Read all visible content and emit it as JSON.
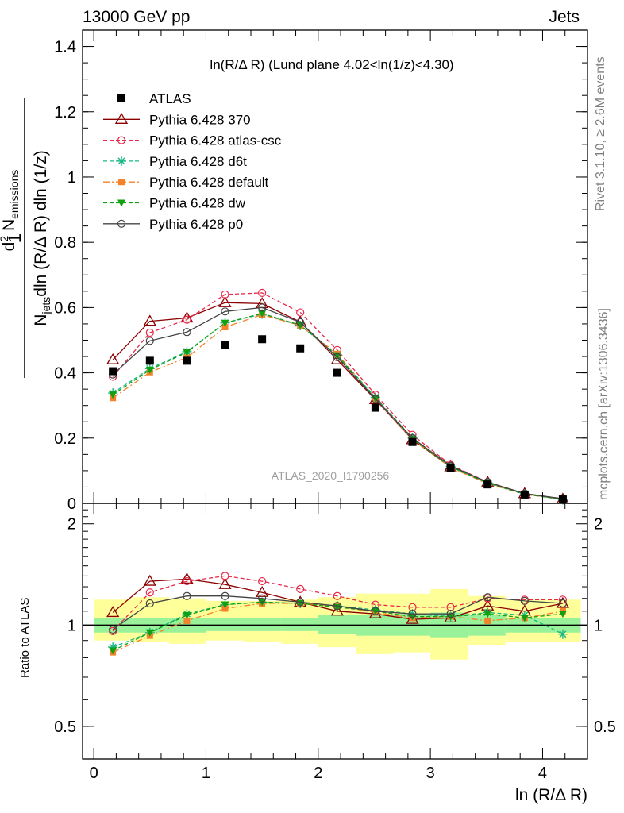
{
  "header": {
    "left": "13000 GeV pp",
    "right": "Jets"
  },
  "side_labels": {
    "rivet": "Rivet 3.1.10, ≥ 2.6M events",
    "mcplots": "mcplots.cern.ch [arXiv:1306.3436]"
  },
  "watermark": "ATLAS_2020_I1790256",
  "chart_data": [
    {
      "type": "scatter",
      "title": "ln(R/Δ R) (Lund plane 4.02<ln(1/z)<4.30)",
      "ylabel_parts": {
        "one": "1",
        "njets": "N",
        "njets_sub": "jets",
        "d2": "d",
        "d2_sup": "2",
        "n": " N",
        "n_sub": "emissions",
        "denominator": "dln (R/Δ R) dln (1/z)"
      },
      "xlim": [
        -0.1,
        4.4
      ],
      "ylim": [
        0,
        1.45
      ],
      "yticks": [
        0,
        0.2,
        0.4,
        0.6,
        0.8,
        1,
        1.2,
        1.4
      ],
      "ytick_labels": [
        "0",
        "0.2",
        "0.4",
        "0.6",
        "0.8",
        "1",
        "1.2",
        "1.4"
      ],
      "x": [
        0.17,
        0.5,
        0.83,
        1.17,
        1.5,
        1.84,
        2.17,
        2.51,
        2.84,
        3.18,
        3.51,
        3.84,
        4.18
      ],
      "data": {
        "name": "ATLAS",
        "values": [
          0.405,
          0.437,
          0.437,
          0.485,
          0.503,
          0.475,
          0.4,
          0.293,
          0.188,
          0.108,
          0.058,
          0.027,
          0.012
        ]
      },
      "series": [
        {
          "name": "Pythia 6.428 370",
          "color": "#8b0000",
          "dash": "",
          "marker": "triangle-open",
          "values": [
            0.44,
            0.558,
            0.568,
            0.615,
            0.612,
            0.556,
            0.44,
            0.318,
            0.195,
            0.112,
            0.065,
            0.03,
            0.013
          ]
        },
        {
          "name": "Pythia 6.428 atlas-csc",
          "color": "#e8284a",
          "dash": "5,3",
          "marker": "circle-open",
          "values": [
            0.388,
            0.523,
            0.563,
            0.64,
            0.645,
            0.585,
            0.47,
            0.333,
            0.21,
            0.118,
            0.065,
            0.03,
            0.014
          ]
        },
        {
          "name": "Pythia 6.428 d6t",
          "color": "#19b886",
          "dash": "5,3",
          "marker": "star",
          "values": [
            0.338,
            0.413,
            0.465,
            0.553,
            0.58,
            0.545,
            0.455,
            0.325,
            0.2,
            0.113,
            0.063,
            0.029,
            0.011
          ]
        },
        {
          "name": "Pythia 6.428 default",
          "color": "#f5822a",
          "dash": "8,3,2,3",
          "marker": "square-filled",
          "values": [
            0.323,
            0.402,
            0.447,
            0.54,
            0.578,
            0.545,
            0.458,
            0.32,
            0.195,
            0.11,
            0.06,
            0.028,
            0.013
          ]
        },
        {
          "name": "Pythia 6.428 dw",
          "color": "#11a011",
          "dash": "5,3",
          "marker": "triangle-down-filled",
          "values": [
            0.333,
            0.409,
            0.463,
            0.553,
            0.582,
            0.546,
            0.453,
            0.322,
            0.197,
            0.112,
            0.062,
            0.028,
            0.013
          ]
        },
        {
          "name": "Pythia 6.428 p0",
          "color": "#444444",
          "dash": "",
          "marker": "circle-open",
          "values": [
            0.395,
            0.498,
            0.525,
            0.588,
            0.6,
            0.555,
            0.448,
            0.32,
            0.2,
            0.115,
            0.065,
            0.03,
            0.014
          ]
        }
      ]
    },
    {
      "type": "line",
      "ylabel": "Ratio to ATLAS",
      "xlabel": "ln (R/Δ R)",
      "xlim": [
        -0.1,
        4.4
      ],
      "ylim": [
        0.4,
        2.3
      ],
      "log_y": true,
      "xticks": [
        0,
        1,
        2,
        3,
        4
      ],
      "xtick_labels": [
        "0",
        "1",
        "2",
        "3",
        "4"
      ],
      "yticks": [
        0.5,
        1,
        2
      ],
      "ytick_labels": [
        "0.5",
        "1",
        "2"
      ],
      "reference": 1,
      "x": [
        0.17,
        0.5,
        0.83,
        1.17,
        1.5,
        1.84,
        2.17,
        2.51,
        2.84,
        3.18,
        3.51,
        3.84,
        4.18
      ],
      "bin_edges": [
        0.0,
        0.34,
        0.67,
        1.0,
        1.34,
        1.67,
        2.0,
        2.34,
        2.67,
        3.0,
        3.34,
        3.67,
        4.0,
        4.34
      ],
      "band_inner": [
        [
          0.95,
          1.05
        ],
        [
          0.95,
          1.05
        ],
        [
          0.95,
          1.05
        ],
        [
          0.96,
          1.05
        ],
        [
          0.96,
          1.05
        ],
        [
          0.96,
          1.05
        ],
        [
          0.94,
          1.07
        ],
        [
          0.93,
          1.07
        ],
        [
          0.93,
          1.08
        ],
        [
          0.92,
          1.09
        ],
        [
          0.93,
          1.07
        ],
        [
          0.95,
          1.05
        ],
        [
          0.95,
          1.05
        ]
      ],
      "band_outer": [
        [
          0.9,
          1.19
        ],
        [
          0.89,
          1.21
        ],
        [
          0.88,
          1.2
        ],
        [
          0.9,
          1.18
        ],
        [
          0.89,
          1.18
        ],
        [
          0.88,
          1.19
        ],
        [
          0.86,
          1.21
        ],
        [
          0.82,
          1.24
        ],
        [
          0.83,
          1.24
        ],
        [
          0.79,
          1.28
        ],
        [
          0.87,
          1.22
        ],
        [
          0.89,
          1.19
        ],
        [
          0.89,
          1.19
        ]
      ],
      "series": [
        {
          "name": "Pythia 6.428 370",
          "values": [
            1.09,
            1.35,
            1.37,
            1.32,
            1.25,
            1.17,
            1.1,
            1.08,
            1.04,
            1.05,
            1.14,
            1.1,
            1.16
          ]
        },
        {
          "name": "Pythia 6.428 atlas-csc",
          "values": [
            0.96,
            1.25,
            1.35,
            1.4,
            1.35,
            1.28,
            1.22,
            1.15,
            1.13,
            1.13,
            1.2,
            1.19,
            1.19
          ]
        },
        {
          "name": "Pythia 6.428 d6t",
          "values": [
            0.86,
            0.95,
            1.08,
            1.15,
            1.17,
            1.16,
            1.14,
            1.11,
            1.08,
            1.06,
            1.09,
            1.07,
            0.94
          ]
        },
        {
          "name": "Pythia 6.428 default",
          "values": [
            0.83,
            0.93,
            1.03,
            1.12,
            1.16,
            1.16,
            1.14,
            1.09,
            1.05,
            1.06,
            1.03,
            1.05,
            1.1
          ]
        },
        {
          "name": "Pythia 6.428 dw",
          "values": [
            0.84,
            0.95,
            1.07,
            1.15,
            1.17,
            1.16,
            1.13,
            1.1,
            1.06,
            1.06,
            1.08,
            1.05,
            1.08
          ]
        },
        {
          "name": "Pythia 6.428 p0",
          "values": [
            0.97,
            1.16,
            1.22,
            1.22,
            1.2,
            1.17,
            1.14,
            1.1,
            1.08,
            1.08,
            1.21,
            1.18,
            1.16
          ]
        }
      ]
    }
  ]
}
